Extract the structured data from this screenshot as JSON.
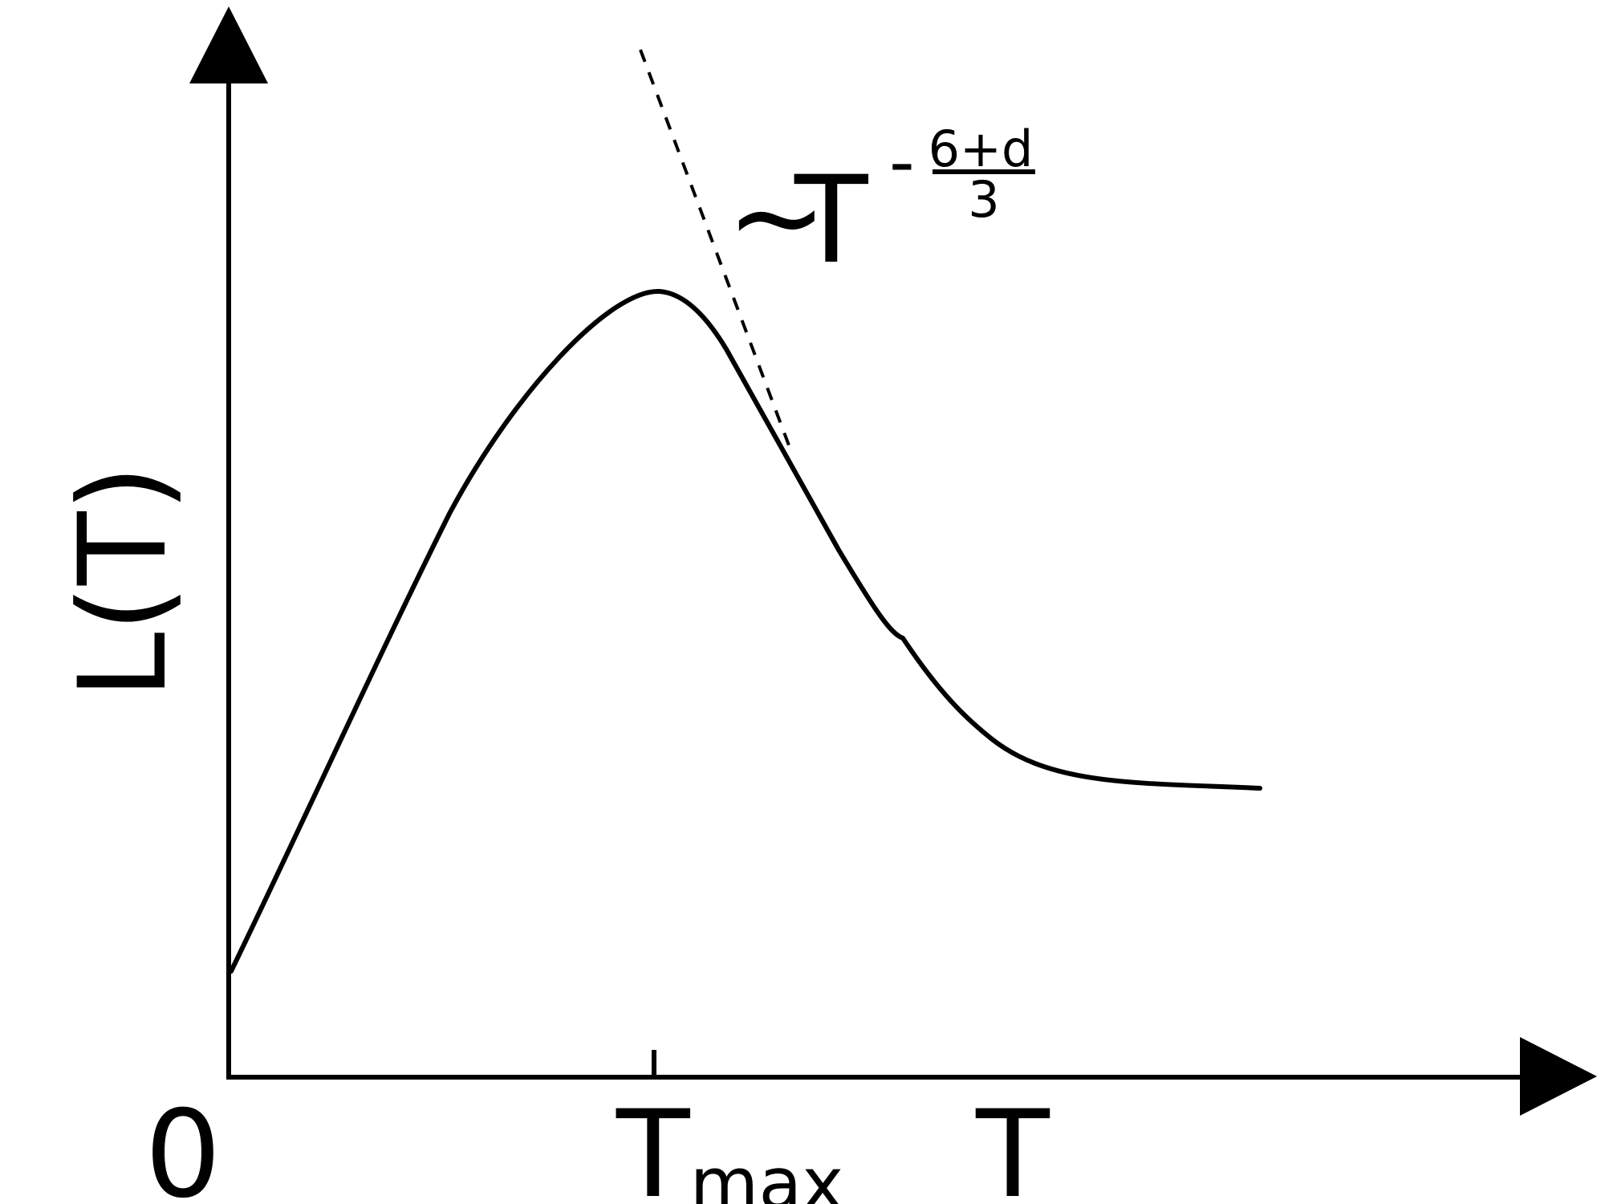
{
  "axes": {
    "y_label": "L(T)",
    "origin_label": "0",
    "x_label": "T",
    "tick_label_main": "T",
    "tick_label_sub": "max"
  },
  "annotation": {
    "prefix": "~",
    "base": "T",
    "exponent_sign": "-",
    "exponent_numerator": "6+d",
    "exponent_denominator": "3"
  },
  "style": {
    "line_color": "#000000",
    "background": "#ffffff"
  }
}
